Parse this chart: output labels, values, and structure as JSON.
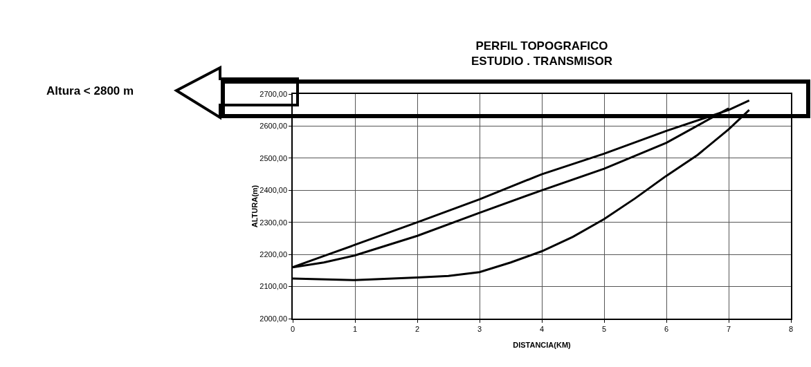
{
  "chart_data": {
    "type": "line",
    "title": "PERFIL TOPOGRAFICO\nESTUDIO . TRANSMISOR",
    "xlabel": "DISTANCIA(KM)",
    "ylabel": "ALTURA(m)",
    "annotations": [
      "Altura < 2800 m"
    ],
    "series": [
      {
        "color": "#000000",
        "x": [
          0,
          0.5,
          1,
          2,
          3,
          4,
          5,
          6,
          7,
          7.33
        ],
        "values": [
          2160,
          2195,
          2230,
          2300,
          2372,
          2450,
          2514,
          2585,
          2650,
          2680
        ]
      },
      {
        "color": "#000000",
        "x": [
          0,
          0.5,
          1,
          2,
          3,
          4,
          5,
          6,
          7
        ],
        "values": [
          2160,
          2175,
          2197,
          2258,
          2330,
          2400,
          2467,
          2548,
          2655
        ]
      },
      {
        "color": "#000000",
        "x": [
          0,
          1,
          2,
          2.5,
          3,
          3.5,
          4,
          4.5,
          5,
          5.5,
          6,
          6.5,
          7,
          7.33
        ],
        "values": [
          2125,
          2120,
          2128,
          2133,
          2145,
          2175,
          2210,
          2255,
          2310,
          2375,
          2445,
          2510,
          2590,
          2650
        ]
      }
    ],
    "xlim": [
      0,
      8
    ],
    "xticks": [
      0,
      1,
      2,
      3,
      4,
      5,
      6,
      7,
      8
    ],
    "ylim": [
      2000,
      2700
    ],
    "yticks": [
      {
        "value": 2000,
        "label": "2000,00"
      },
      {
        "value": 2100,
        "label": "2100,00"
      },
      {
        "value": 2200,
        "label": "2200,00"
      },
      {
        "value": 2300,
        "label": "2300,00"
      },
      {
        "value": 2400,
        "label": "2400,00"
      },
      {
        "value": 2500,
        "label": "2500,00"
      },
      {
        "value": 2600,
        "label": "2600,00"
      },
      {
        "value": 2700,
        "label": "2700,00"
      }
    ],
    "grid": true,
    "marker": "none",
    "line_style": "solid"
  }
}
